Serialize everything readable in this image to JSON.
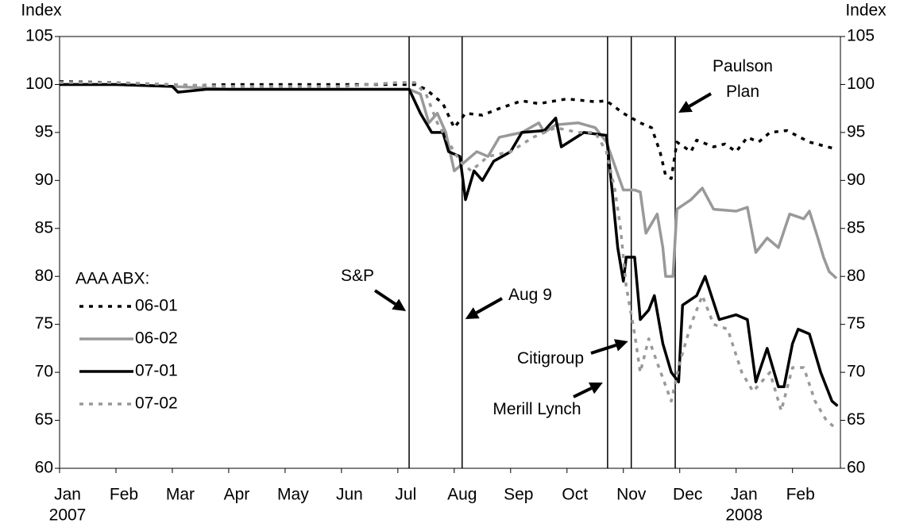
{
  "chart_data": {
    "type": "line",
    "y_label": "Index",
    "y2_label": "Index",
    "xlim": [
      0,
      13.85
    ],
    "xticks": [
      {
        "value": 0,
        "label": "Jan"
      },
      {
        "value": 1,
        "label": "Feb"
      },
      {
        "value": 2,
        "label": "Mar"
      },
      {
        "value": 3,
        "label": "Apr"
      },
      {
        "value": 4,
        "label": "May"
      },
      {
        "value": 5,
        "label": "Jun"
      },
      {
        "value": 6,
        "label": "Jul"
      },
      {
        "value": 7,
        "label": "Aug"
      },
      {
        "value": 8,
        "label": "Sep"
      },
      {
        "value": 9,
        "label": "Oct"
      },
      {
        "value": 10,
        "label": "Nov"
      },
      {
        "value": 11,
        "label": "Dec"
      },
      {
        "value": 12,
        "label": "Jan"
      },
      {
        "value": 13,
        "label": "Feb"
      }
    ],
    "x_year_labels": [
      {
        "value": 0,
        "label": "2007"
      },
      {
        "value": 12,
        "label": "2008"
      }
    ],
    "ylim": [
      60,
      105
    ],
    "yticks": [
      60,
      65,
      70,
      75,
      80,
      85,
      90,
      95,
      100,
      105
    ],
    "y2lim": [
      60,
      105
    ],
    "y2ticks": [
      60,
      65,
      70,
      75,
      80,
      85,
      90,
      95,
      100,
      105
    ],
    "legend_title": "AAA ABX:",
    "legend_position": "left",
    "series": [
      {
        "name": "06-01",
        "color": "#000000",
        "dash": "dotted",
        "x": [
          0,
          1,
          2,
          3,
          4,
          5,
          6,
          6.3,
          6.5,
          6.8,
          7.0,
          7.2,
          7.5,
          7.8,
          8.2,
          8.5,
          9.0,
          9.5,
          9.7,
          10.0,
          10.3,
          10.5,
          10.65,
          10.75,
          10.85,
          10.95,
          11.2,
          11.3,
          11.6,
          11.8,
          12.0,
          12.2,
          12.4,
          12.6,
          12.9,
          13.3,
          13.75
        ],
        "values": [
          100.3,
          100.2,
          99.8,
          100,
          100,
          100,
          100,
          100,
          99.5,
          98,
          95.5,
          97,
          96.8,
          97.5,
          98.3,
          98,
          98.5,
          98.2,
          98.3,
          97,
          96,
          95.5,
          93,
          90.5,
          90.2,
          94,
          93,
          94.2,
          93.5,
          93.8,
          93,
          94.5,
          94,
          95,
          95.2,
          94,
          93.3
        ]
      },
      {
        "name": "06-02",
        "color": "#999999",
        "dash": "solid",
        "x": [
          0,
          1,
          2,
          3,
          4,
          5,
          6,
          6.2,
          6.4,
          6.55,
          6.7,
          6.85,
          7.0,
          7.2,
          7.4,
          7.6,
          7.8,
          8.2,
          8.5,
          8.6,
          8.8,
          9.2,
          9.5,
          9.7,
          10.0,
          10.2,
          10.3,
          10.4,
          10.6,
          10.7,
          10.75,
          10.88,
          10.95,
          11.2,
          11.4,
          11.6,
          12.0,
          12.2,
          12.35,
          12.55,
          12.75,
          12.95,
          13.2,
          13.3,
          13.45,
          13.55,
          13.65,
          13.78
        ],
        "values": [
          100,
          100,
          99.8,
          99.5,
          99.5,
          99.5,
          99.5,
          99.5,
          99,
          96,
          97,
          95,
          91,
          92,
          93,
          92.5,
          94.5,
          95,
          96,
          95,
          95.8,
          96,
          95.5,
          94,
          89,
          89,
          88.8,
          84.5,
          86.5,
          83,
          80,
          80,
          87,
          88,
          89.2,
          87,
          86.8,
          87.2,
          82.5,
          84,
          83,
          86.5,
          86,
          86.8,
          84,
          82,
          80.5,
          79.8
        ]
      },
      {
        "name": "07-01",
        "color": "#000000",
        "dash": "solid",
        "x": [
          0,
          1,
          2.0,
          2.1,
          2.6,
          4,
          5,
          6.2,
          6.4,
          6.6,
          6.8,
          6.9,
          7.1,
          7.2,
          7.35,
          7.5,
          7.7,
          8.0,
          8.2,
          8.6,
          8.8,
          8.9,
          9.3,
          9.7,
          9.8,
          9.9,
          10.0,
          10.05,
          10.2,
          10.3,
          10.45,
          10.55,
          10.7,
          10.85,
          10.98,
          11.05,
          11.3,
          11.45,
          11.7,
          12.0,
          12.2,
          12.35,
          12.55,
          12.75,
          12.85,
          13.0,
          13.1,
          13.3,
          13.5,
          13.7,
          13.8
        ],
        "values": [
          100,
          100,
          99.8,
          99.2,
          99.5,
          99.5,
          99.5,
          99.5,
          97,
          95,
          95,
          93,
          92.5,
          88,
          91,
          90,
          92,
          93,
          95,
          95.2,
          96.5,
          93.5,
          95,
          94.7,
          89,
          83,
          79.5,
          82,
          82,
          75.5,
          76.5,
          78,
          73,
          70,
          69,
          77,
          78,
          80,
          75.5,
          76,
          75.5,
          69,
          72.5,
          68.5,
          68.5,
          73,
          74.5,
          74,
          70,
          67,
          66.5
        ]
      },
      {
        "name": "07-02",
        "color": "#999999",
        "dash": "dotted",
        "x": [
          0,
          1,
          2,
          3,
          4,
          5,
          6,
          6.3,
          6.5,
          6.7,
          6.9,
          7.1,
          7.3,
          7.6,
          8.0,
          8.4,
          8.8,
          9.2,
          9.5,
          9.7,
          9.85,
          9.95,
          10.05,
          10.2,
          10.3,
          10.45,
          10.6,
          10.85,
          11.0,
          11.2,
          11.4,
          11.6,
          11.85,
          12.1,
          12.3,
          12.6,
          12.8,
          13.0,
          13.2,
          13.4,
          13.6,
          13.8
        ],
        "values": [
          100.2,
          100.2,
          100,
          99.8,
          99.8,
          99.8,
          100.2,
          100.2,
          99,
          96,
          94,
          92,
          91,
          92.5,
          93,
          94.5,
          95.5,
          95,
          95,
          93,
          89,
          85,
          79,
          74,
          70,
          73.5,
          71,
          67,
          71,
          75,
          78,
          75,
          74.5,
          70,
          68,
          70,
          66,
          70.5,
          70.5,
          67,
          65,
          64
        ]
      }
    ],
    "events": [
      {
        "x": 6.2,
        "label": [
          "S&P"
        ]
      },
      {
        "x": 7.14,
        "label": [
          "Aug 9"
        ]
      },
      {
        "x": 9.72,
        "label": [
          "Merill Lynch"
        ]
      },
      {
        "x": 10.14,
        "label": [
          "Citigroup"
        ]
      },
      {
        "x": 10.92,
        "label": [
          "Paulson",
          "Plan"
        ]
      }
    ]
  }
}
